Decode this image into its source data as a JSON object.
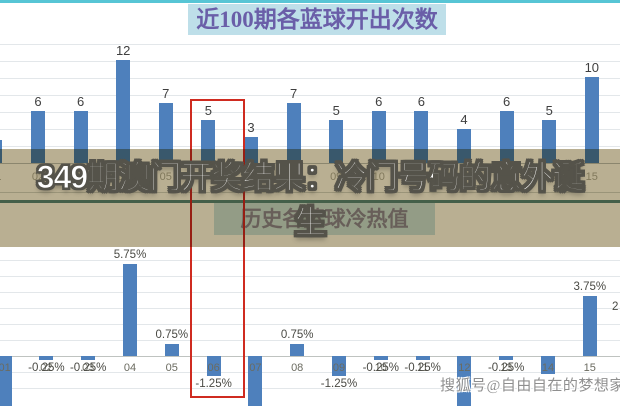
{
  "page": {
    "headline_line1": "349期澳门开奖结果：冷门号码的意外诞",
    "headline_line2": "生",
    "watermark": "搜狐号@自由自在的梦想家",
    "edge_partial_label": "2",
    "highlighted_category": "06",
    "colors": {
      "bar_blue": "#4e80bc",
      "title_text": "#6a5ea8",
      "title_bg": "#bedfe9",
      "top_border": "#57c5d5",
      "overlay_tan": "#b9af92",
      "red_box": "#cf2b20"
    }
  },
  "chart_data": [
    {
      "type": "bar",
      "title": "近100期各蓝球开出次数",
      "grid": true,
      "ylim": [
        0,
        14
      ],
      "categories": [
        "01",
        "02",
        "03",
        "04",
        "05",
        "06",
        "07",
        "08",
        "09",
        "10",
        "11",
        "12",
        "13",
        "14",
        "15"
      ],
      "values": [
        2.7,
        6,
        6,
        12,
        7,
        5,
        3,
        7,
        5,
        6,
        6,
        4,
        6,
        5,
        10
      ],
      "value_labels": [
        "",
        "6",
        "6",
        "12",
        "7",
        "5",
        "3",
        "7",
        "5",
        "6",
        "6",
        "4",
        "6",
        "5",
        "10"
      ],
      "note": "leftmost bar 01 partially cut by image edge, its value label is not visible; bar 06 framed in red"
    },
    {
      "type": "bar",
      "title": "历史各蓝球冷热值",
      "grid": true,
      "ylim": [
        -3,
        6.25
      ],
      "unit": "%",
      "categories": [
        "01",
        "02",
        "03",
        "04",
        "05",
        "06",
        "07",
        "08",
        "09",
        "10",
        "11",
        "12",
        "13",
        "14",
        "15"
      ],
      "values": [
        -3.1,
        -0.25,
        -0.25,
        5.75,
        0.75,
        -1.25,
        -3.1,
        0.75,
        -1.25,
        -0.25,
        -0.25,
        -3.1,
        -0.25,
        -1.1,
        3.75
      ],
      "value_labels": [
        "",
        "-0.25%",
        "-0.25%",
        "5.75%",
        "0.75%",
        "-1.25%",
        "",
        "0.75%",
        "-1.25%",
        "-0.25%",
        "-0.25%",
        "",
        "-0.25%",
        "",
        "3.75%"
      ],
      "cut_bottom": [
        true,
        false,
        false,
        false,
        false,
        false,
        true,
        false,
        false,
        false,
        false,
        true,
        false,
        false,
        false
      ],
      "note": "bars 01, 07, 12 extend below the cropped image edge; their labels are not visible; bar 06 framed in red"
    }
  ]
}
